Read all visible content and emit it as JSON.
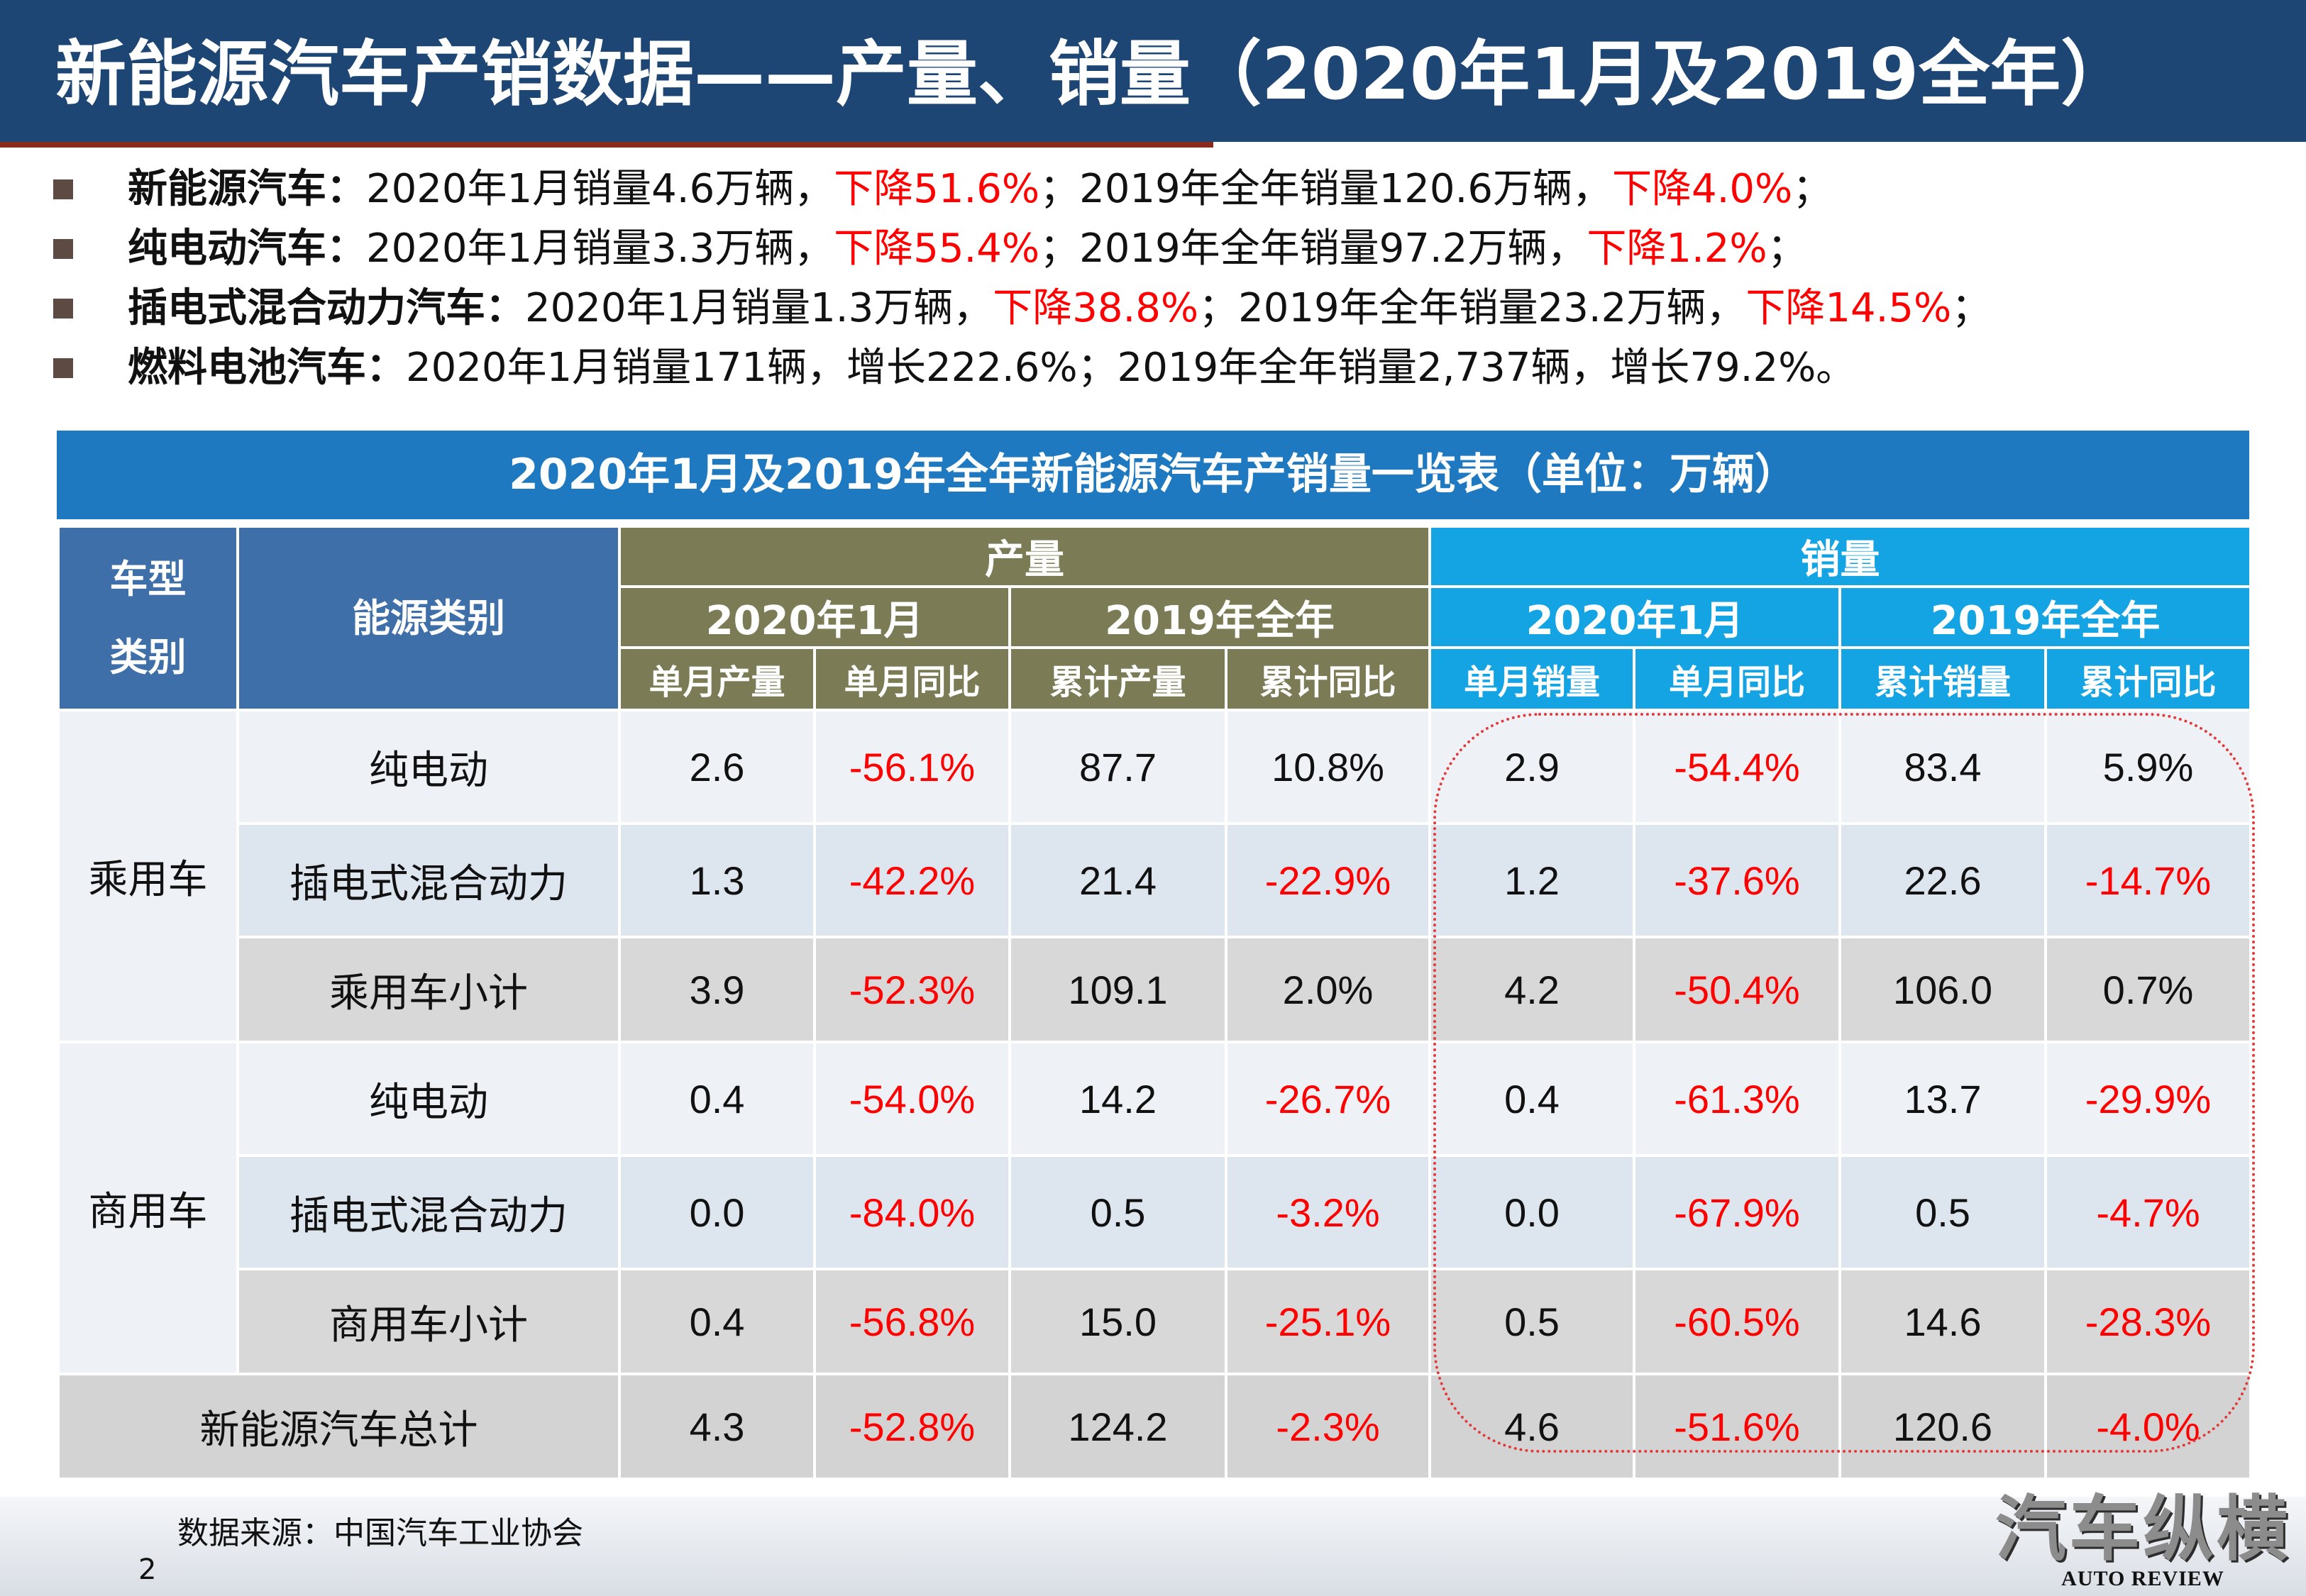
{
  "header": {
    "title": "新能源汽车产销数据——产量、销量（2020年1月及2019全年）"
  },
  "bullets": [
    {
      "label": "新能源汽车：",
      "part1": "2020年1月销量4.6万辆，",
      "red1": "下降51.6%",
      "part2": "；2019年全年销量120.6万辆，",
      "red2": "下降4.0%",
      "part3": "；"
    },
    {
      "label": "纯电动汽车：",
      "part1": "2020年1月销量3.3万辆，",
      "red1": "下降55.4%",
      "part2": "；2019年全年销量97.2万辆，",
      "red2": "下降1.2%",
      "part3": "；"
    },
    {
      "label": "插电式混合动力汽车：",
      "part1": "2020年1月销量1.3万辆，",
      "red1": "下降38.8%",
      "part2": "；2019年全年销量23.2万辆，",
      "red2": "下降14.5%",
      "part3": "；"
    },
    {
      "label": "燃料电池汽车：",
      "part1": "2020年1月销量171辆，增长222.6%；2019年全年销量2,737辆，增长79.2%。",
      "red1": "",
      "part2": "",
      "red2": "",
      "part3": ""
    }
  ],
  "table": {
    "title": "2020年1月及2019年全年新能源汽车产销量一览表（单位：万辆）",
    "head": {
      "type_line1": "车型",
      "type_line2": "类别",
      "energy": "能源类别",
      "production": "产量",
      "sales": "销量",
      "jan2020": "2020年1月",
      "year2019": "2019年全年",
      "cols": [
        "单月产量",
        "单月同比",
        "累计产量",
        "累计同比",
        "单月销量",
        "单月同比",
        "累计销量",
        "累计同比"
      ]
    },
    "groups": {
      "passenger": "乘用车",
      "commercial": "商用车"
    },
    "rows": [
      {
        "energy": "纯电动",
        "values": [
          "2.6",
          "-56.1%",
          "87.7",
          "10.8%",
          "2.9",
          "-54.4%",
          "83.4",
          "5.9%"
        ]
      },
      {
        "energy": "插电式混合动力",
        "values": [
          "1.3",
          "-42.2%",
          "21.4",
          "-22.9%",
          "1.2",
          "-37.6%",
          "22.6",
          "-14.7%"
        ]
      },
      {
        "energy": "乘用车小计",
        "values": [
          "3.9",
          "-52.3%",
          "109.1",
          "2.0%",
          "4.2",
          "-50.4%",
          "106.0",
          "0.7%"
        ]
      },
      {
        "energy": "纯电动",
        "values": [
          "0.4",
          "-54.0%",
          "14.2",
          "-26.7%",
          "0.4",
          "-61.3%",
          "13.7",
          "-29.9%"
        ]
      },
      {
        "energy": "插电式混合动力",
        "values": [
          "0.0",
          "-84.0%",
          "0.5",
          "-3.2%",
          "0.0",
          "-67.9%",
          "0.5",
          "-4.7%"
        ]
      },
      {
        "energy": "商用车小计",
        "values": [
          "0.4",
          "-56.8%",
          "15.0",
          "-25.1%",
          "0.5",
          "-60.5%",
          "14.6",
          "-28.3%"
        ]
      }
    ],
    "total": {
      "label": "新能源汽车总计",
      "values": [
        "4.3",
        "-52.8%",
        "124.2",
        "-2.3%",
        "4.6",
        "-51.6%",
        "120.6",
        "-4.0%"
      ]
    }
  },
  "footer": {
    "source": "数据来源：中国汽车工业协会",
    "page": "2",
    "logo_text": "汽车纵横",
    "logo_sub": "AUTO REVIEW"
  },
  "colors": {
    "header_bg": "#1d4674",
    "table_title_bg": "#1f79c0",
    "production_header": "#7b7c55",
    "sales_header": "#14a3e3",
    "negative": "#ff0000"
  }
}
